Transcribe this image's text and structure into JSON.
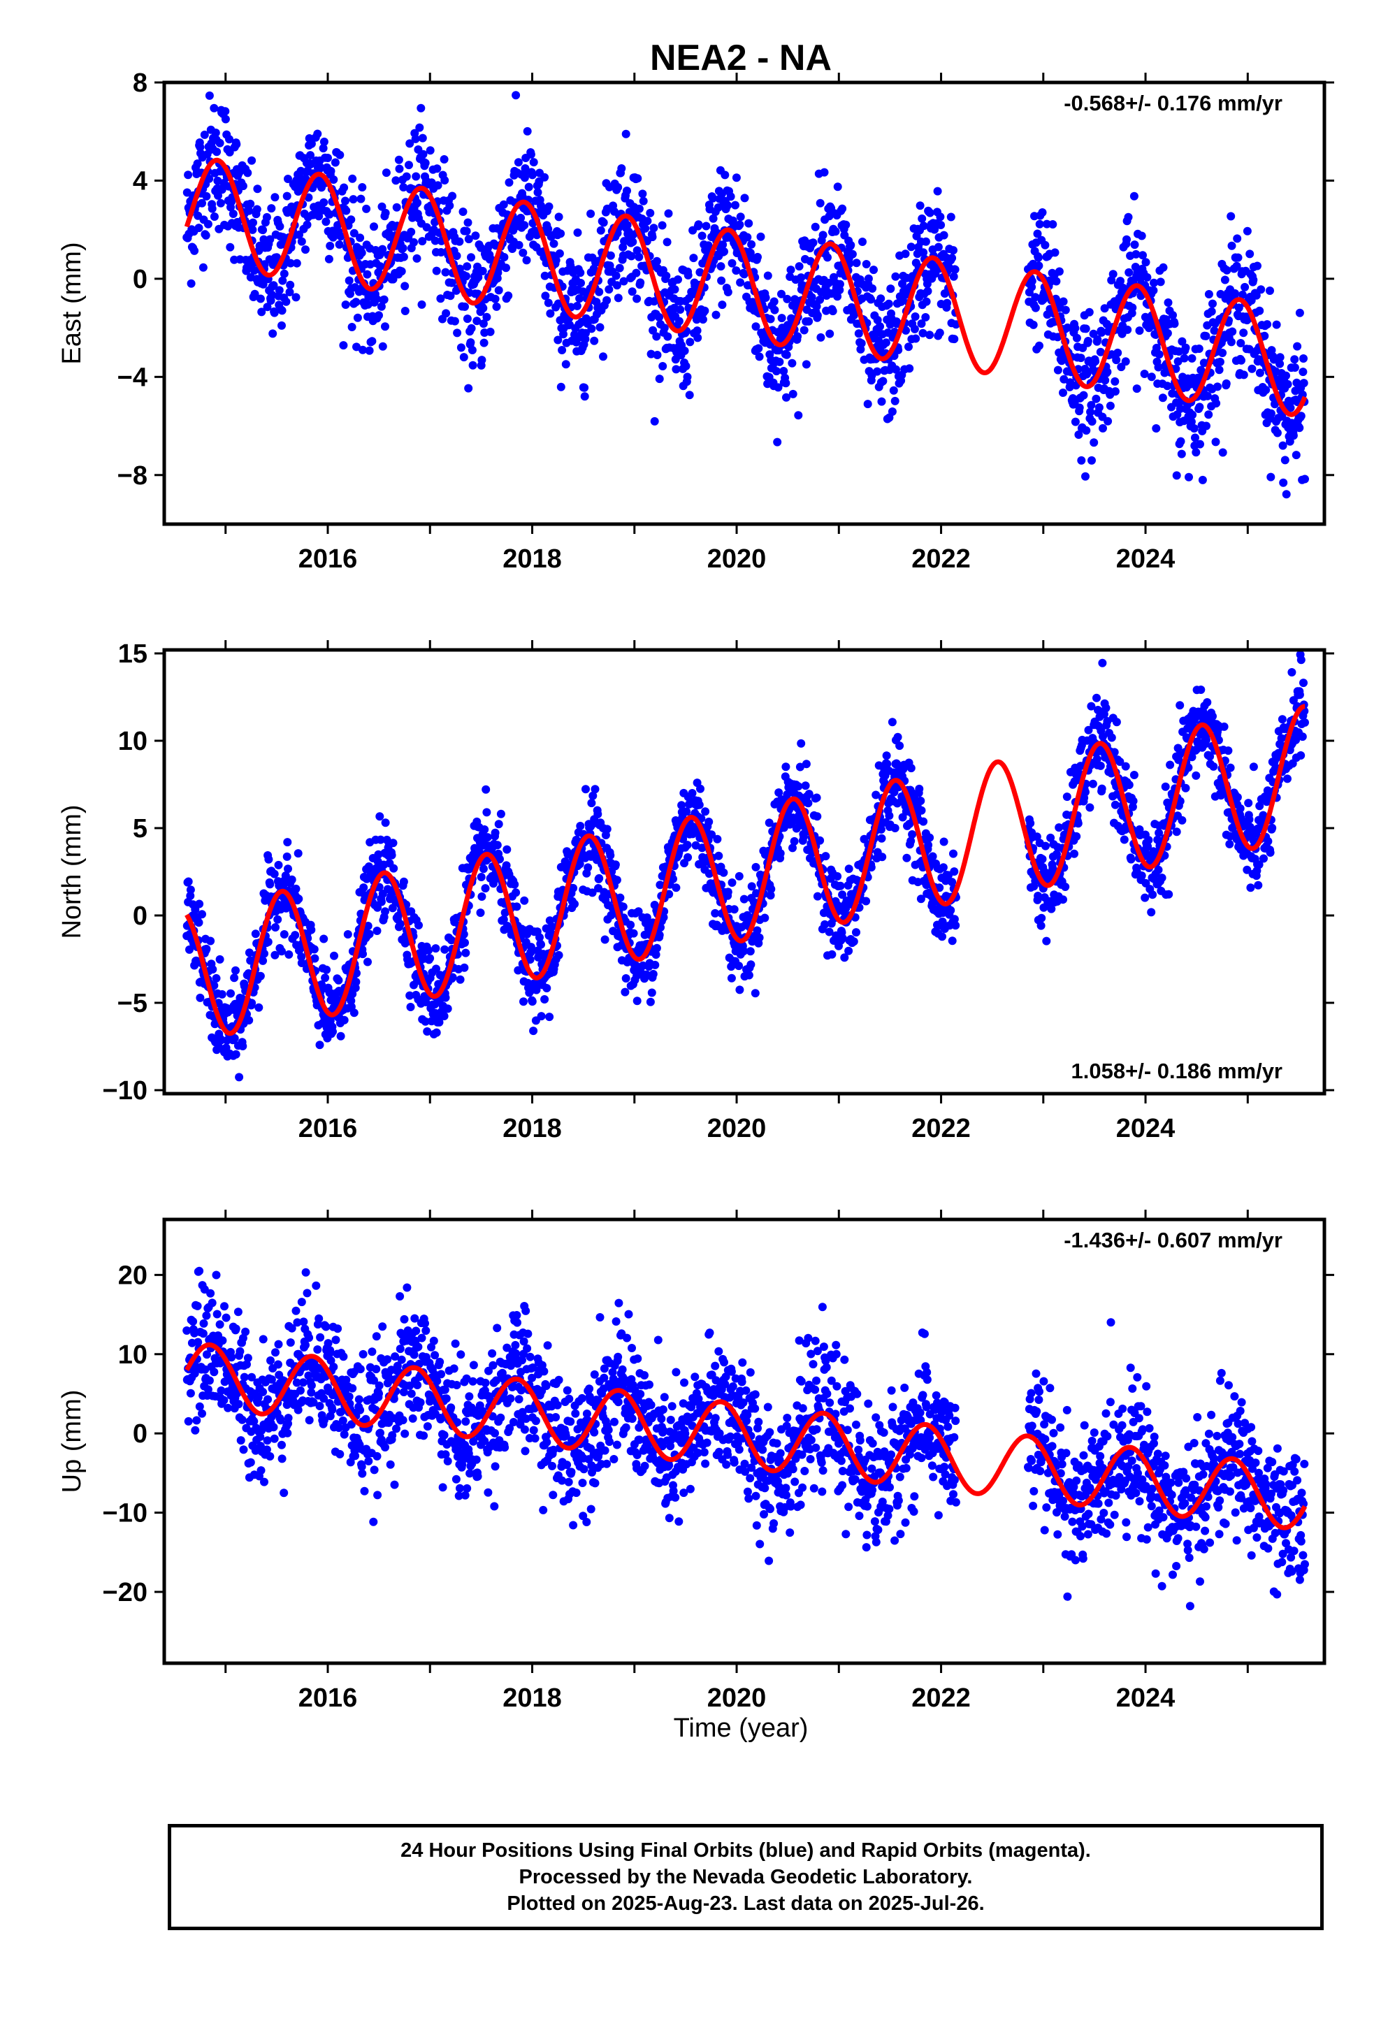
{
  "chart_data": {
    "title": "NEA2 - NA",
    "type": "scatter",
    "x_label": "Time (year)",
    "x_ticks": [
      2016,
      2018,
      2020,
      2022,
      2024
    ],
    "xlim": [
      2014.4,
      2025.75
    ],
    "data_start": 2014.62,
    "data_end": 2025.56,
    "gaps": [
      [
        2022.15,
        2022.85
      ]
    ],
    "point_color": "#0000ff",
    "fit_color": "#ff0000",
    "panels": [
      {
        "name": "east",
        "y_label": "East (mm)",
        "ylim": [
          -10,
          8
        ],
        "y_ticks": [
          -8,
          -4,
          0,
          4,
          8
        ],
        "rate_text": "-0.568+/- 0.176 mm/yr",
        "rate_position": "top-right",
        "model": {
          "offset": 2.8,
          "trend": -0.568,
          "amplitude": 2.2,
          "phase_peak": 0.92
        },
        "scatter_sd": 1.4
      },
      {
        "name": "north",
        "y_label": "North (mm)",
        "ylim": [
          -10.2,
          15.2
        ],
        "y_ticks": [
          -10,
          -5,
          0,
          5,
          10,
          15
        ],
        "rate_text": "1.058+/- 0.186 mm/yr",
        "rate_position": "bottom-right",
        "model": {
          "offset": -3.4,
          "trend": 1.058,
          "amplitude": 3.8,
          "phase_peak": 0.55
        },
        "scatter_sd": 1.3
      },
      {
        "name": "up",
        "y_label": "Up (mm)",
        "ylim": [
          -29,
          27
        ],
        "y_ticks": [
          -20,
          -10,
          0,
          10,
          20
        ],
        "rate_text": "-1.436+/- 0.607 mm/yr",
        "rate_position": "top-right",
        "model": {
          "offset": 7.5,
          "trend": -1.436,
          "amplitude": 4.0,
          "phase_peak": 0.85
        },
        "scatter_sd": 4.2
      }
    ]
  },
  "caption": {
    "line1": "24 Hour Positions Using Final Orbits (blue) and Rapid Orbits (magenta).",
    "line2": "Processed by the Nevada Geodetic Laboratory.",
    "line3": "Plotted on 2025-Aug-23. Last data on 2025-Jul-26."
  }
}
